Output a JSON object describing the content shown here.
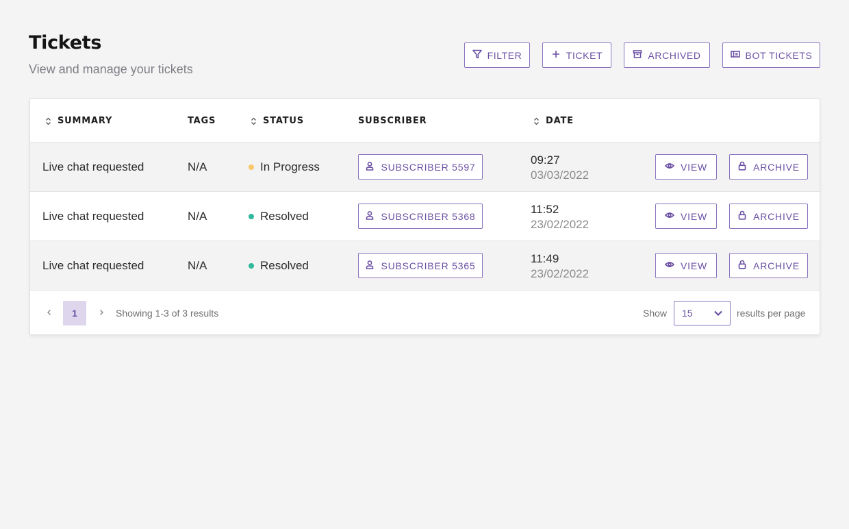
{
  "header": {
    "title": "Tickets",
    "subtitle": "View and manage your tickets"
  },
  "toolbar": {
    "filter_label": "FILTER",
    "ticket_label": "TICKET",
    "archived_label": "ARCHIVED",
    "bot_tickets_label": "BOT TICKETS"
  },
  "table": {
    "columns": {
      "summary": "SUMMARY",
      "tags": "TAGS",
      "status": "STATUS",
      "subscriber": "SUBSCRIBER",
      "date": "DATE"
    },
    "rows": [
      {
        "summary": "Live chat requested",
        "tags": "N/A",
        "status": "In Progress",
        "status_color": "#f9c869",
        "subscriber": "SUBSCRIBER 5597",
        "time": "09:27",
        "date": "03/03/2022",
        "view_label": "VIEW",
        "archive_label": "ARCHIVE"
      },
      {
        "summary": "Live chat requested",
        "tags": "N/A",
        "status": "Resolved",
        "status_color": "#2fb89b",
        "subscriber": "SUBSCRIBER 5368",
        "time": "11:52",
        "date": "23/02/2022",
        "view_label": "VIEW",
        "archive_label": "ARCHIVE"
      },
      {
        "summary": "Live chat requested",
        "tags": "N/A",
        "status": "Resolved",
        "status_color": "#2fb89b",
        "subscriber": "SUBSCRIBER 5365",
        "time": "11:49",
        "date": "23/02/2022",
        "view_label": "VIEW",
        "archive_label": "ARCHIVE"
      }
    ]
  },
  "pagination": {
    "current_page": "1",
    "showing_text": "Showing 1-3 of 3 results",
    "show_label": "Show",
    "per_page": "15",
    "per_page_suffix": "results per page"
  },
  "colors": {
    "accent": "#6a4fa3",
    "in_progress": "#f9c869",
    "resolved": "#2fb89b"
  }
}
